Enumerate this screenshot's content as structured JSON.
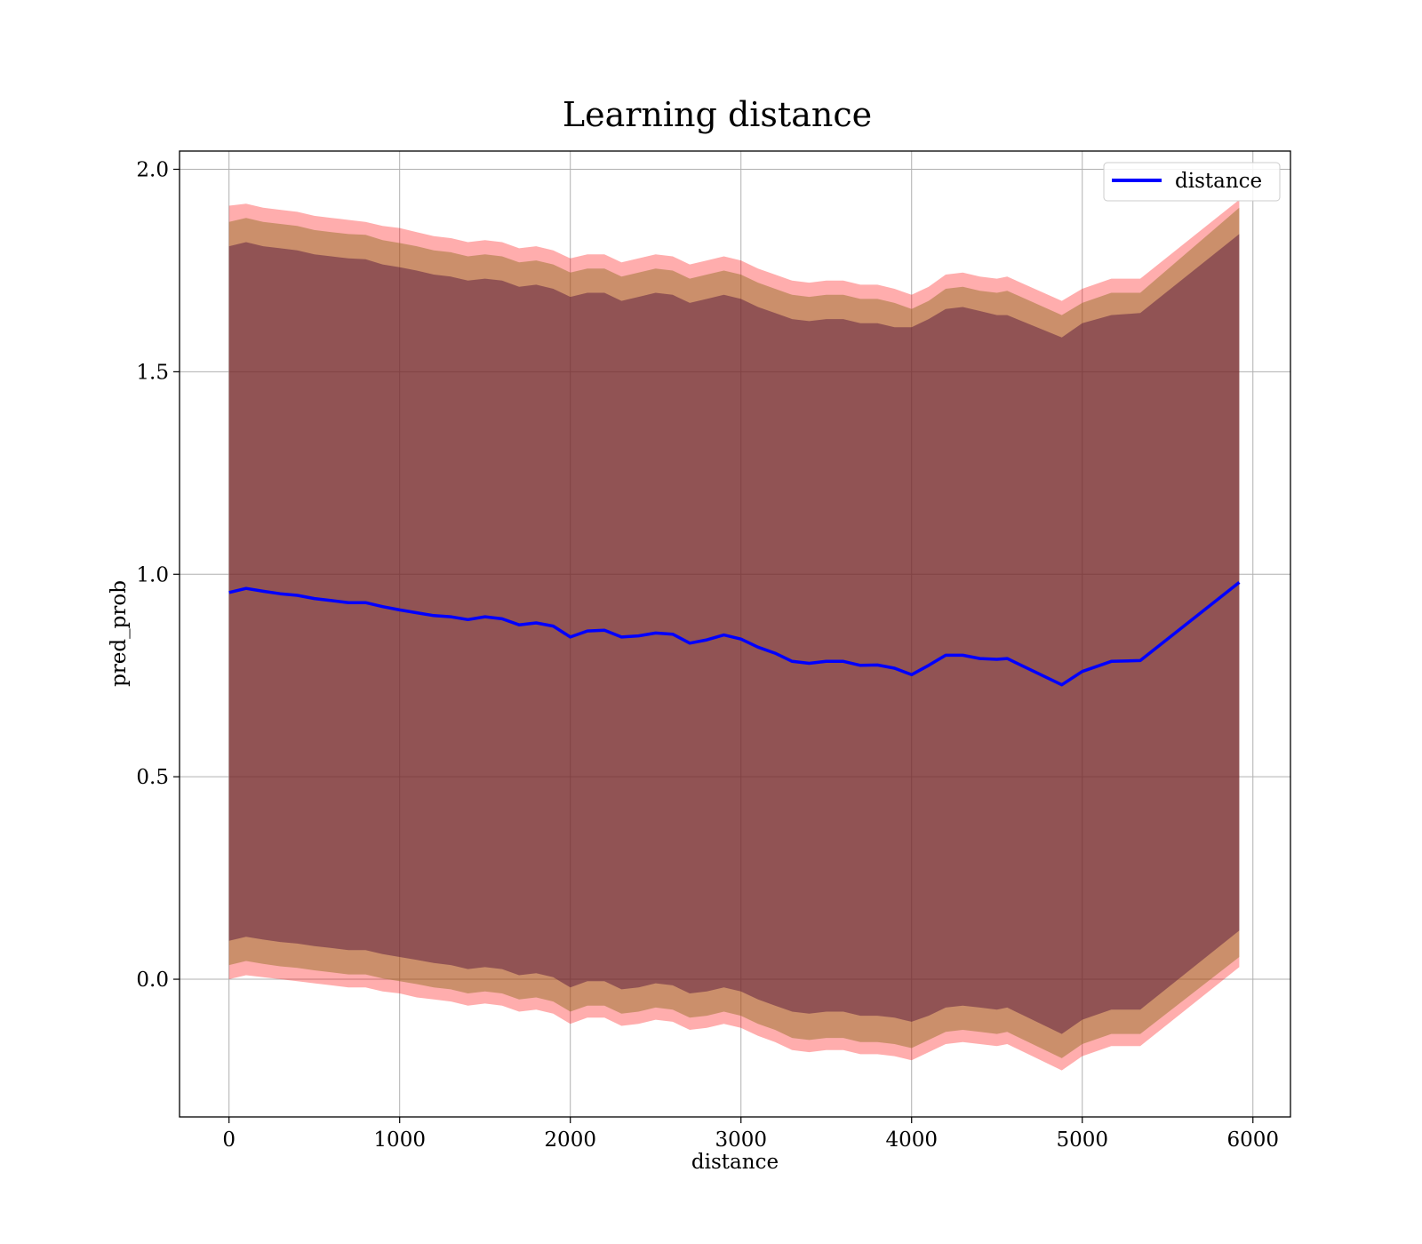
{
  "chart_data": {
    "type": "area",
    "title": "Learning distance",
    "xlabel": "distance",
    "ylabel": "pred_prob",
    "xlim": [
      -290,
      6220
    ],
    "ylim": [
      -0.34,
      2.045
    ],
    "xticks": [
      0,
      1000,
      2000,
      3000,
      4000,
      5000,
      6000
    ],
    "yticks": [
      0.0,
      0.5,
      1.0,
      1.5,
      2.0
    ],
    "grid": true,
    "legend": {
      "placement": "top-right",
      "entries": [
        "distance"
      ]
    },
    "colors": {
      "line": "#0000ff",
      "band_outer": "#ff0000",
      "band_middle": "#8b6a1a",
      "band_inner": "#4b0a3a",
      "grid": "#b0b0b0"
    },
    "x": [
      0,
      100,
      200,
      300,
      400,
      500,
      600,
      700,
      800,
      900,
      1000,
      1100,
      1200,
      1300,
      1400,
      1500,
      1600,
      1700,
      1800,
      1900,
      2000,
      2100,
      2200,
      2300,
      2400,
      2500,
      2600,
      2700,
      2800,
      2900,
      3000,
      3100,
      3200,
      3300,
      3400,
      3500,
      3600,
      3700,
      3800,
      3900,
      4000,
      4100,
      4200,
      4300,
      4400,
      4500,
      4560,
      4880,
      5000,
      5170,
      5340,
      5920
    ],
    "series": [
      {
        "name": "distance",
        "values": [
          0.955,
          0.965,
          0.958,
          0.952,
          0.948,
          0.94,
          0.935,
          0.93,
          0.93,
          0.92,
          0.912,
          0.905,
          0.898,
          0.895,
          0.888,
          0.895,
          0.89,
          0.875,
          0.88,
          0.872,
          0.845,
          0.86,
          0.862,
          0.845,
          0.848,
          0.855,
          0.852,
          0.83,
          0.838,
          0.85,
          0.84,
          0.82,
          0.805,
          0.785,
          0.78,
          0.785,
          0.785,
          0.775,
          0.776,
          0.768,
          0.752,
          0.775,
          0.8,
          0.8,
          0.792,
          0.79,
          0.792,
          0.727,
          0.76,
          0.785,
          0.787,
          0.98
        ]
      }
    ],
    "bands": [
      {
        "upper": [
          1.91,
          1.915,
          1.905,
          1.9,
          1.895,
          1.885,
          1.88,
          1.875,
          1.87,
          1.86,
          1.855,
          1.845,
          1.835,
          1.83,
          1.82,
          1.825,
          1.82,
          1.805,
          1.81,
          1.8,
          1.78,
          1.79,
          1.79,
          1.77,
          1.78,
          1.79,
          1.785,
          1.765,
          1.775,
          1.785,
          1.775,
          1.755,
          1.74,
          1.725,
          1.72,
          1.725,
          1.725,
          1.715,
          1.715,
          1.705,
          1.69,
          1.71,
          1.74,
          1.745,
          1.735,
          1.73,
          1.735,
          1.675,
          1.705,
          1.73,
          1.73,
          1.925
        ],
        "lower": [
          0.0,
          0.01,
          0.005,
          0.0,
          -0.005,
          -0.01,
          -0.015,
          -0.02,
          -0.02,
          -0.03,
          -0.035,
          -0.045,
          -0.05,
          -0.055,
          -0.065,
          -0.06,
          -0.065,
          -0.08,
          -0.075,
          -0.085,
          -0.11,
          -0.095,
          -0.095,
          -0.115,
          -0.11,
          -0.1,
          -0.105,
          -0.125,
          -0.12,
          -0.11,
          -0.12,
          -0.14,
          -0.155,
          -0.175,
          -0.18,
          -0.175,
          -0.175,
          -0.185,
          -0.185,
          -0.19,
          -0.2,
          -0.18,
          -0.16,
          -0.155,
          -0.16,
          -0.165,
          -0.16,
          -0.225,
          -0.19,
          -0.165,
          -0.165,
          0.03
        ]
      },
      {
        "upper": [
          1.87,
          1.88,
          1.87,
          1.865,
          1.86,
          1.85,
          1.845,
          1.84,
          1.838,
          1.825,
          1.818,
          1.81,
          1.8,
          1.795,
          1.785,
          1.79,
          1.785,
          1.77,
          1.775,
          1.765,
          1.745,
          1.755,
          1.755,
          1.735,
          1.745,
          1.755,
          1.75,
          1.73,
          1.74,
          1.75,
          1.74,
          1.72,
          1.705,
          1.69,
          1.685,
          1.69,
          1.69,
          1.68,
          1.68,
          1.67,
          1.655,
          1.675,
          1.705,
          1.71,
          1.7,
          1.695,
          1.7,
          1.64,
          1.67,
          1.695,
          1.695,
          1.905
        ],
        "lower": [
          0.035,
          0.045,
          0.038,
          0.032,
          0.028,
          0.022,
          0.017,
          0.012,
          0.012,
          0.002,
          -0.005,
          -0.012,
          -0.02,
          -0.025,
          -0.035,
          -0.03,
          -0.035,
          -0.05,
          -0.045,
          -0.055,
          -0.08,
          -0.065,
          -0.065,
          -0.085,
          -0.08,
          -0.07,
          -0.075,
          -0.095,
          -0.09,
          -0.08,
          -0.09,
          -0.11,
          -0.125,
          -0.145,
          -0.15,
          -0.145,
          -0.145,
          -0.155,
          -0.155,
          -0.16,
          -0.17,
          -0.15,
          -0.13,
          -0.125,
          -0.13,
          -0.135,
          -0.13,
          -0.195,
          -0.16,
          -0.135,
          -0.135,
          0.055
        ]
      },
      {
        "upper": [
          1.81,
          1.82,
          1.81,
          1.805,
          1.8,
          1.79,
          1.785,
          1.78,
          1.778,
          1.765,
          1.758,
          1.75,
          1.74,
          1.735,
          1.725,
          1.73,
          1.725,
          1.71,
          1.715,
          1.705,
          1.685,
          1.695,
          1.695,
          1.675,
          1.685,
          1.695,
          1.69,
          1.67,
          1.68,
          1.69,
          1.68,
          1.66,
          1.645,
          1.63,
          1.625,
          1.63,
          1.63,
          1.62,
          1.62,
          1.61,
          1.61,
          1.63,
          1.655,
          1.66,
          1.65,
          1.64,
          1.64,
          1.585,
          1.62,
          1.64,
          1.645,
          1.84
        ],
        "lower": [
          0.095,
          0.105,
          0.098,
          0.092,
          0.088,
          0.082,
          0.077,
          0.072,
          0.072,
          0.062,
          0.055,
          0.048,
          0.04,
          0.035,
          0.025,
          0.03,
          0.025,
          0.01,
          0.015,
          0.005,
          -0.02,
          -0.005,
          -0.005,
          -0.025,
          -0.02,
          -0.01,
          -0.015,
          -0.035,
          -0.03,
          -0.02,
          -0.03,
          -0.05,
          -0.065,
          -0.08,
          -0.085,
          -0.08,
          -0.08,
          -0.09,
          -0.09,
          -0.095,
          -0.105,
          -0.09,
          -0.07,
          -0.065,
          -0.07,
          -0.075,
          -0.07,
          -0.135,
          -0.1,
          -0.075,
          -0.075,
          0.12
        ]
      }
    ]
  }
}
